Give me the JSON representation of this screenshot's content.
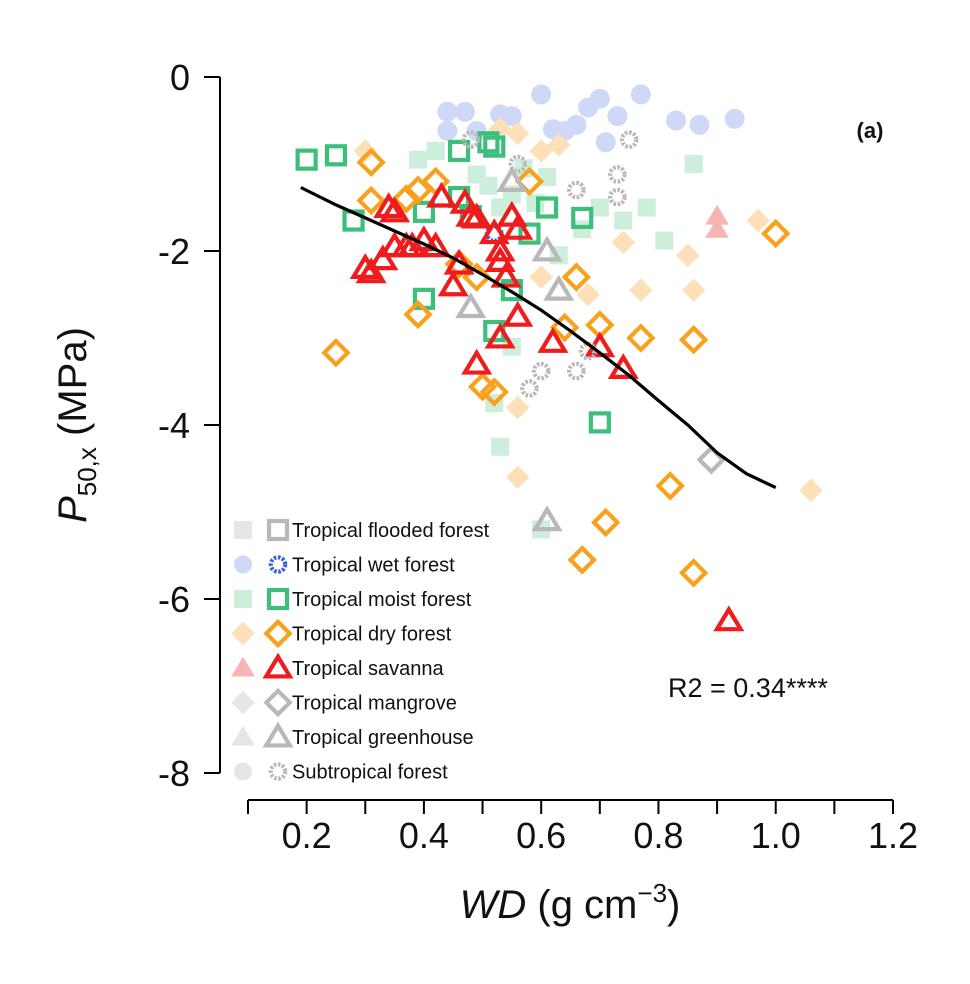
{
  "chart_data": {
    "type": "scatter",
    "panel_label": "(a)",
    "annotation": "R2 = 0.34****",
    "xlabel": {
      "italic": "WD",
      "unit_pre": " (g cm",
      "unit_sup": "−3",
      "unit_post": ")"
    },
    "ylabel": {
      "italic": "P",
      "sub": "50,x",
      "unit": " (MPa)"
    },
    "xlim": [
      0.1,
      1.2
    ],
    "ylim": [
      -8,
      0
    ],
    "x_ticks": [
      0.2,
      0.4,
      0.6,
      0.8,
      1.0,
      1.2
    ],
    "x_tick_labels": [
      "0.2",
      "0.4",
      "0.6",
      "0.8",
      "1.0",
      "1.2"
    ],
    "y_ticks": [
      0,
      -2,
      -4,
      -6,
      -8
    ],
    "y_tick_labels": [
      "0",
      "-2",
      "-4",
      "-6",
      "-8"
    ],
    "grid": false,
    "legend_position": "bottom-left",
    "fit_line": {
      "color": "#000000",
      "x": [
        0.19,
        0.25,
        0.3,
        0.35,
        0.4,
        0.45,
        0.5,
        0.55,
        0.6,
        0.65,
        0.7,
        0.75,
        0.8,
        0.85,
        0.9,
        0.95,
        1.0
      ],
      "y": [
        -1.27,
        -1.47,
        -1.62,
        -1.77,
        -1.92,
        -2.08,
        -2.27,
        -2.47,
        -2.68,
        -2.92,
        -3.17,
        -3.43,
        -3.72,
        -4.0,
        -4.32,
        -4.56,
        -4.72
      ]
    },
    "series": [
      {
        "name": "Tropical flooded forest",
        "marker": "square",
        "color": "#b8b8b8",
        "faded": "#e6e6e6",
        "open": [],
        "filled": []
      },
      {
        "name": "Tropical wet forest",
        "marker": "gear",
        "color": "#3a5fd6",
        "faded": "#cfd8f6",
        "open": [
          [
            0.52,
            -1.8
          ]
        ],
        "filled": [
          [
            0.44,
            -0.4
          ],
          [
            0.47,
            -0.4
          ],
          [
            0.49,
            -0.62
          ],
          [
            0.53,
            -0.43
          ],
          [
            0.55,
            -0.45
          ],
          [
            0.6,
            -0.2
          ],
          [
            0.62,
            -0.6
          ],
          [
            0.64,
            -0.62
          ],
          [
            0.66,
            -0.55
          ],
          [
            0.68,
            -0.35
          ],
          [
            0.7,
            -0.25
          ],
          [
            0.71,
            -0.75
          ],
          [
            0.73,
            -0.45
          ],
          [
            0.77,
            -0.2
          ],
          [
            0.83,
            -0.5
          ],
          [
            0.87,
            -0.55
          ],
          [
            0.93,
            -0.48
          ],
          [
            0.44,
            -0.62
          ]
        ]
      },
      {
        "name": "Tropical moist forest",
        "marker": "square",
        "color": "#3bbf7b",
        "faded": "#cdeedb",
        "open": [
          [
            0.2,
            -0.95
          ],
          [
            0.25,
            -0.9
          ],
          [
            0.28,
            -1.65
          ],
          [
            0.4,
            -1.55
          ],
          [
            0.4,
            -2.55
          ],
          [
            0.46,
            -0.85
          ],
          [
            0.46,
            -1.38
          ],
          [
            0.51,
            -0.75
          ],
          [
            0.52,
            -0.8
          ],
          [
            0.52,
            -2.92
          ],
          [
            0.55,
            -2.45
          ],
          [
            0.58,
            -1.8
          ],
          [
            0.61,
            -1.5
          ],
          [
            0.67,
            -1.62
          ],
          [
            0.7,
            -3.97
          ],
          [
            0.48,
            -1.6
          ]
        ],
        "filled": [
          [
            0.39,
            -0.95
          ],
          [
            0.42,
            -0.85
          ],
          [
            0.49,
            -1.12
          ],
          [
            0.51,
            -1.25
          ],
          [
            0.53,
            -1.5
          ],
          [
            0.55,
            -1.35
          ],
          [
            0.57,
            -1.05
          ],
          [
            0.59,
            -1.45
          ],
          [
            0.61,
            -1.15
          ],
          [
            0.63,
            -2.05
          ],
          [
            0.67,
            -1.75
          ],
          [
            0.7,
            -1.5
          ],
          [
            0.74,
            -1.65
          ],
          [
            0.78,
            -1.5
          ],
          [
            0.81,
            -1.88
          ],
          [
            0.86,
            -1.0
          ],
          [
            0.52,
            -3.75
          ],
          [
            0.53,
            -4.25
          ],
          [
            0.55,
            -3.1
          ],
          [
            0.6,
            -5.2
          ]
        ]
      },
      {
        "name": "Tropical dry forest",
        "marker": "diamond",
        "color": "#f7a11c",
        "faded": "#fde0b8",
        "open": [
          [
            0.25,
            -3.17
          ],
          [
            0.31,
            -0.98
          ],
          [
            0.31,
            -1.42
          ],
          [
            0.37,
            -1.4
          ],
          [
            0.39,
            -1.3
          ],
          [
            0.39,
            -2.73
          ],
          [
            0.42,
            -1.2
          ],
          [
            0.46,
            -2.15
          ],
          [
            0.49,
            -2.3
          ],
          [
            0.5,
            -3.56
          ],
          [
            0.52,
            -3.62
          ],
          [
            0.58,
            -1.2
          ],
          [
            0.66,
            -2.3
          ],
          [
            0.7,
            -2.85
          ],
          [
            0.71,
            -5.12
          ],
          [
            0.77,
            -3.0
          ],
          [
            0.82,
            -4.7
          ],
          [
            0.86,
            -3.02
          ],
          [
            0.86,
            -5.7
          ],
          [
            1.0,
            -1.8
          ],
          [
            0.67,
            -5.55
          ],
          [
            0.64,
            -2.88
          ]
        ],
        "filled": [
          [
            0.3,
            -0.85
          ],
          [
            0.53,
            -0.6
          ],
          [
            0.56,
            -0.65
          ],
          [
            0.6,
            -0.85
          ],
          [
            0.63,
            -0.78
          ],
          [
            0.6,
            -2.3
          ],
          [
            0.68,
            -2.5
          ],
          [
            0.74,
            -1.9
          ],
          [
            0.77,
            -2.45
          ],
          [
            0.85,
            -2.05
          ],
          [
            0.86,
            -2.45
          ],
          [
            0.97,
            -1.65
          ],
          [
            0.56,
            -3.8
          ],
          [
            0.56,
            -4.6
          ],
          [
            1.06,
            -4.75
          ]
        ]
      },
      {
        "name": "Tropical savanna",
        "marker": "triangle",
        "color": "#ee1c1c",
        "faded": "#f6b4b4",
        "open": [
          [
            0.3,
            -2.2
          ],
          [
            0.31,
            -2.25
          ],
          [
            0.33,
            -2.1
          ],
          [
            0.34,
            -1.5
          ],
          [
            0.35,
            -1.95
          ],
          [
            0.35,
            -1.55
          ],
          [
            0.37,
            -1.95
          ],
          [
            0.38,
            -1.95
          ],
          [
            0.4,
            -1.88
          ],
          [
            0.42,
            -1.95
          ],
          [
            0.43,
            -1.38
          ],
          [
            0.45,
            -2.4
          ],
          [
            0.46,
            -2.15
          ],
          [
            0.47,
            -1.45
          ],
          [
            0.48,
            -1.6
          ],
          [
            0.49,
            -1.62
          ],
          [
            0.49,
            -3.3
          ],
          [
            0.52,
            -1.8
          ],
          [
            0.53,
            -2.0
          ],
          [
            0.53,
            -3.0
          ],
          [
            0.54,
            -2.3
          ],
          [
            0.55,
            -1.6
          ],
          [
            0.56,
            -2.75
          ],
          [
            0.56,
            -1.75
          ],
          [
            0.62,
            -3.05
          ],
          [
            0.7,
            -3.1
          ],
          [
            0.74,
            -3.35
          ],
          [
            0.92,
            -6.25
          ],
          [
            0.53,
            -2.12
          ]
        ],
        "filled": [
          [
            0.9,
            -1.6
          ],
          [
            0.9,
            -1.75
          ]
        ]
      },
      {
        "name": "Tropical mangrove",
        "marker": "diamond",
        "color": "#b8b8b8",
        "faded": "#e6e6e6",
        "open": [
          [
            0.89,
            -4.4
          ]
        ],
        "filled": []
      },
      {
        "name": "Tropical greenhouse",
        "marker": "triangle",
        "color": "#b8b8b8",
        "faded": "#e6e6e6",
        "open": [
          [
            0.48,
            -2.65
          ],
          [
            0.55,
            -1.2
          ],
          [
            0.61,
            -2.0
          ],
          [
            0.63,
            -2.45
          ],
          [
            0.61,
            -5.1
          ]
        ],
        "filled": []
      },
      {
        "name": "Subtropical forest",
        "marker": "gear",
        "color": "#b8b8b8",
        "faded": "#e6e6e6",
        "open": [
          [
            0.48,
            -0.72
          ],
          [
            0.56,
            -1.0
          ],
          [
            0.58,
            -3.58
          ],
          [
            0.6,
            -3.38
          ],
          [
            0.66,
            -1.3
          ],
          [
            0.66,
            -3.38
          ],
          [
            0.68,
            -3.15
          ],
          [
            0.73,
            -1.12
          ],
          [
            0.73,
            -1.38
          ],
          [
            0.75,
            -0.72
          ]
        ],
        "filled": []
      }
    ]
  }
}
